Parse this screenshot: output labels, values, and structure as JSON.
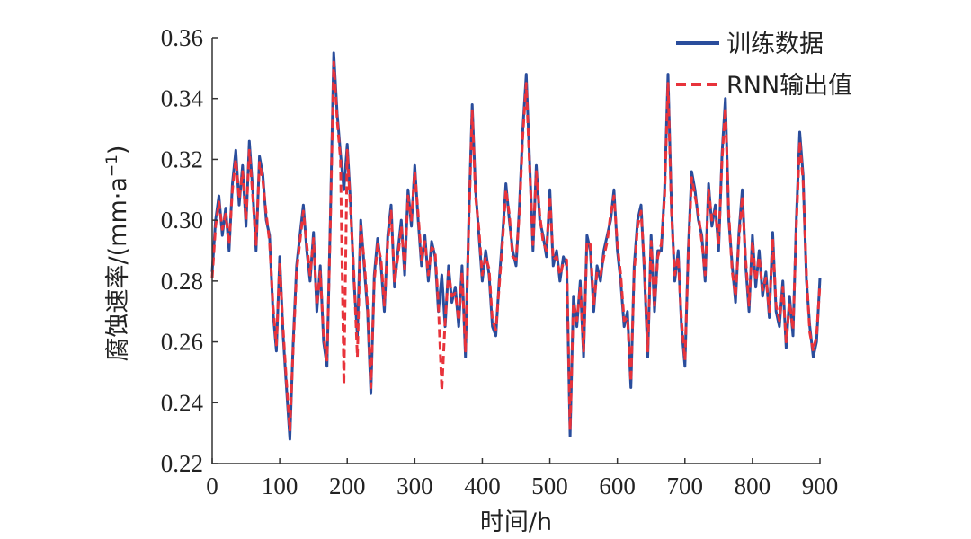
{
  "chart_data": {
    "type": "line",
    "xlabel": "时间/h",
    "ylabel_main": "腐蚀速率/(mm·a",
    "ylabel_sup": "−1",
    "ylabel_tail": ")",
    "xlim": [
      0,
      900
    ],
    "ylim": [
      0.22,
      0.36
    ],
    "xticks": [
      0,
      100,
      200,
      300,
      400,
      500,
      600,
      700,
      800,
      900
    ],
    "yticks": [
      0.22,
      0.24,
      0.26,
      0.28,
      0.3,
      0.32,
      0.34,
      0.36
    ],
    "xtick_labels": [
      "0",
      "100",
      "200",
      "300",
      "400",
      "500",
      "600",
      "700",
      "800",
      "900"
    ],
    "ytick_labels": [
      "0.22",
      "0.24",
      "0.26",
      "0.28",
      "0.30",
      "0.32",
      "0.34",
      "0.36"
    ],
    "grid": false,
    "legend_position": "top-right",
    "series": [
      {
        "name": "训练数据",
        "color": "#2a4d9c",
        "style": "solid",
        "x": [
          0,
          5,
          10,
          15,
          20,
          25,
          30,
          35,
          40,
          45,
          50,
          55,
          60,
          65,
          70,
          75,
          80,
          85,
          90,
          95,
          100,
          105,
          110,
          115,
          120,
          125,
          130,
          135,
          140,
          145,
          150,
          155,
          160,
          165,
          170,
          175,
          180,
          185,
          190,
          195,
          200,
          205,
          210,
          215,
          220,
          225,
          230,
          235,
          240,
          245,
          250,
          255,
          260,
          265,
          270,
          275,
          280,
          285,
          290,
          295,
          300,
          305,
          310,
          315,
          320,
          325,
          330,
          335,
          340,
          345,
          350,
          355,
          360,
          365,
          370,
          375,
          380,
          385,
          390,
          395,
          400,
          405,
          410,
          415,
          420,
          425,
          430,
          435,
          440,
          445,
          450,
          455,
          460,
          465,
          470,
          475,
          480,
          485,
          490,
          495,
          500,
          505,
          510,
          515,
          520,
          525,
          530,
          535,
          540,
          545,
          550,
          555,
          560,
          565,
          570,
          575,
          580,
          585,
          590,
          595,
          600,
          605,
          610,
          615,
          620,
          625,
          630,
          635,
          640,
          645,
          650,
          655,
          660,
          665,
          670,
          675,
          680,
          685,
          690,
          695,
          700,
          705,
          710,
          715,
          720,
          725,
          730,
          735,
          740,
          745,
          750,
          755,
          760,
          765,
          770,
          775,
          780,
          785,
          790,
          795,
          800,
          805,
          810,
          815,
          820,
          825,
          830,
          835,
          840,
          845,
          850,
          855,
          860,
          865,
          870,
          875,
          880,
          885,
          890,
          895,
          900
        ],
        "values": [
          0.283,
          0.3,
          0.308,
          0.295,
          0.304,
          0.29,
          0.312,
          0.323,
          0.305,
          0.318,
          0.298,
          0.326,
          0.31,
          0.29,
          0.321,
          0.315,
          0.3,
          0.295,
          0.27,
          0.257,
          0.288,
          0.262,
          0.245,
          0.228,
          0.26,
          0.285,
          0.295,
          0.305,
          0.29,
          0.28,
          0.296,
          0.27,
          0.285,
          0.26,
          0.252,
          0.3,
          0.355,
          0.335,
          0.322,
          0.31,
          0.325,
          0.305,
          0.28,
          0.262,
          0.3,
          0.285,
          0.27,
          0.243,
          0.282,
          0.294,
          0.285,
          0.27,
          0.295,
          0.305,
          0.278,
          0.29,
          0.3,
          0.282,
          0.31,
          0.298,
          0.318,
          0.3,
          0.285,
          0.295,
          0.28,
          0.293,
          0.288,
          0.27,
          0.282,
          0.265,
          0.285,
          0.273,
          0.278,
          0.265,
          0.285,
          0.255,
          0.3,
          0.338,
          0.31,
          0.295,
          0.28,
          0.29,
          0.282,
          0.265,
          0.262,
          0.28,
          0.295,
          0.312,
          0.3,
          0.29,
          0.285,
          0.305,
          0.33,
          0.348,
          0.32,
          0.29,
          0.318,
          0.3,
          0.295,
          0.288,
          0.31,
          0.285,
          0.29,
          0.28,
          0.288,
          0.285,
          0.229,
          0.275,
          0.265,
          0.28,
          0.255,
          0.295,
          0.29,
          0.27,
          0.285,
          0.28,
          0.29,
          0.295,
          0.3,
          0.31,
          0.29,
          0.28,
          0.265,
          0.27,
          0.245,
          0.285,
          0.3,
          0.305,
          0.283,
          0.255,
          0.295,
          0.27,
          0.29,
          0.29,
          0.31,
          0.348,
          0.305,
          0.28,
          0.29,
          0.265,
          0.252,
          0.29,
          0.316,
          0.31,
          0.3,
          0.295,
          0.28,
          0.312,
          0.298,
          0.305,
          0.29,
          0.322,
          0.34,
          0.3,
          0.285,
          0.273,
          0.296,
          0.31,
          0.285,
          0.27,
          0.295,
          0.278,
          0.29,
          0.275,
          0.283,
          0.268,
          0.296,
          0.27,
          0.265,
          0.28,
          0.258,
          0.275,
          0.262,
          0.3,
          0.329,
          0.315,
          0.28,
          0.265,
          0.255,
          0.26,
          0.281
        ]
      },
      {
        "name": "RNN输出值",
        "color": "#e8333b",
        "style": "dashed",
        "x": [
          0,
          5,
          10,
          15,
          20,
          25,
          30,
          35,
          40,
          45,
          50,
          55,
          60,
          65,
          70,
          75,
          80,
          85,
          90,
          95,
          100,
          105,
          110,
          115,
          120,
          125,
          130,
          135,
          140,
          145,
          150,
          155,
          160,
          165,
          170,
          175,
          180,
          185,
          190,
          195,
          200,
          205,
          210,
          215,
          220,
          225,
          230,
          235,
          240,
          245,
          250,
          255,
          260,
          265,
          270,
          275,
          280,
          285,
          290,
          295,
          300,
          305,
          310,
          315,
          320,
          325,
          330,
          335,
          340,
          345,
          350,
          355,
          360,
          365,
          370,
          375,
          380,
          385,
          390,
          395,
          400,
          405,
          410,
          415,
          420,
          425,
          430,
          435,
          440,
          445,
          450,
          455,
          460,
          465,
          470,
          475,
          480,
          485,
          490,
          495,
          500,
          505,
          510,
          515,
          520,
          525,
          530,
          535,
          540,
          545,
          550,
          555,
          560,
          565,
          570,
          575,
          580,
          585,
          590,
          595,
          600,
          605,
          610,
          615,
          620,
          625,
          630,
          635,
          640,
          645,
          650,
          655,
          660,
          665,
          670,
          675,
          680,
          685,
          690,
          695,
          700,
          705,
          710,
          715,
          720,
          725,
          730,
          735,
          740,
          745,
          750,
          755,
          760,
          765,
          770,
          775,
          780,
          785,
          790,
          795,
          800,
          805,
          810,
          815,
          820,
          825,
          830,
          835,
          840,
          845,
          850,
          855,
          860,
          865,
          870,
          875,
          880,
          885,
          890,
          895,
          900
        ],
        "values": [
          0.281,
          0.298,
          0.306,
          0.297,
          0.302,
          0.292,
          0.31,
          0.32,
          0.307,
          0.316,
          0.3,
          0.323,
          0.308,
          0.292,
          0.319,
          0.313,
          0.302,
          0.293,
          0.272,
          0.259,
          0.286,
          0.264,
          0.247,
          0.231,
          0.258,
          0.283,
          0.293,
          0.303,
          0.292,
          0.282,
          0.294,
          0.272,
          0.283,
          0.262,
          0.254,
          0.298,
          0.352,
          0.333,
          0.32,
          0.246,
          0.323,
          0.303,
          0.282,
          0.255,
          0.298,
          0.287,
          0.272,
          0.245,
          0.28,
          0.292,
          0.287,
          0.272,
          0.293,
          0.303,
          0.28,
          0.288,
          0.298,
          0.284,
          0.308,
          0.3,
          0.316,
          0.302,
          0.287,
          0.293,
          0.282,
          0.291,
          0.29,
          0.272,
          0.244,
          0.267,
          0.283,
          0.275,
          0.276,
          0.267,
          0.283,
          0.257,
          0.298,
          0.336,
          0.308,
          0.297,
          0.282,
          0.288,
          0.284,
          0.267,
          0.264,
          0.278,
          0.293,
          0.31,
          0.302,
          0.288,
          0.287,
          0.303,
          0.328,
          0.345,
          0.318,
          0.292,
          0.316,
          0.302,
          0.293,
          0.29,
          0.308,
          0.287,
          0.288,
          0.282,
          0.286,
          0.287,
          0.231,
          0.273,
          0.267,
          0.278,
          0.257,
          0.293,
          0.292,
          0.272,
          0.283,
          0.282,
          0.288,
          0.293,
          0.302,
          0.308,
          0.292,
          0.282,
          0.267,
          0.268,
          0.247,
          0.283,
          0.298,
          0.303,
          0.285,
          0.257,
          0.293,
          0.272,
          0.288,
          0.292,
          0.308,
          0.345,
          0.303,
          0.282,
          0.288,
          0.267,
          0.254,
          0.288,
          0.314,
          0.308,
          0.302,
          0.293,
          0.282,
          0.31,
          0.3,
          0.303,
          0.292,
          0.32,
          0.337,
          0.302,
          0.283,
          0.275,
          0.294,
          0.308,
          0.287,
          0.272,
          0.293,
          0.28,
          0.288,
          0.277,
          0.281,
          0.27,
          0.294,
          0.272,
          0.267,
          0.278,
          0.26,
          0.273,
          0.264,
          0.298,
          0.326,
          0.313,
          0.282,
          0.263,
          0.257,
          0.262,
          0.279
        ]
      }
    ]
  }
}
